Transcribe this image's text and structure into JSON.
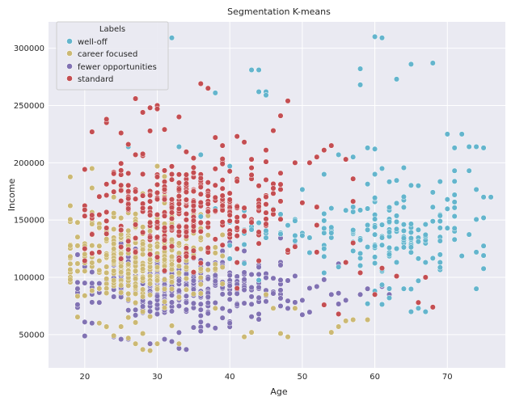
{
  "chart_data": {
    "type": "scatter",
    "title": "Segmentation K-means",
    "xlabel": "Age",
    "ylabel": "Income",
    "xlim": [
      15,
      78
    ],
    "ylim": [
      21000,
      323000
    ],
    "x_ticks": [
      20,
      30,
      40,
      50,
      60,
      70
    ],
    "y_ticks": [
      50000,
      100000,
      150000,
      200000,
      250000,
      300000
    ],
    "x_tick_labels": [
      "20",
      "30",
      "40",
      "50",
      "60",
      "70"
    ],
    "y_tick_labels": [
      "50000",
      "100000",
      "150000",
      "200000",
      "250000",
      "300000"
    ],
    "grid": true,
    "background": "#eaeaf2",
    "legend": {
      "title": "Labels",
      "placement": "top-left",
      "entries": [
        "well-off",
        "career focused",
        "fewer opportunities",
        "standard"
      ]
    },
    "series": [
      {
        "name": "well-off",
        "color": "#64b5cd",
        "clusters": [
          {
            "cx": 63,
            "cy": 140000,
            "sx": 5.5,
            "sy": 22000,
            "n": 150,
            "xmin": 53,
            "xmax": 75
          },
          {
            "cx": 47,
            "cy": 140000,
            "sx": 4,
            "sy": 15000,
            "n": 40,
            "xmin": 40,
            "xmax": 54
          }
        ],
        "points": [
          [
            32,
            309000
          ],
          [
            43,
            281000
          ],
          [
            44,
            281000
          ],
          [
            44,
            262000
          ],
          [
            45,
            262000
          ],
          [
            45,
            259000
          ],
          [
            38,
            261000
          ],
          [
            58,
            282000
          ],
          [
            58,
            268000
          ],
          [
            60,
            310000
          ],
          [
            61,
            309000
          ],
          [
            63,
            273000
          ],
          [
            65,
            286000
          ],
          [
            68,
            287000
          ],
          [
            70,
            225000
          ],
          [
            72,
            225000
          ],
          [
            71,
            213000
          ],
          [
            73,
            214000
          ],
          [
            74,
            214000
          ],
          [
            75,
            213000
          ],
          [
            73,
            193000
          ],
          [
            71,
            193000
          ],
          [
            75,
            170000
          ],
          [
            76,
            170000
          ],
          [
            70,
            168000
          ],
          [
            71,
            172000
          ],
          [
            71,
            133000
          ],
          [
            74,
            122000
          ],
          [
            74,
            90000
          ],
          [
            64,
            90000
          ],
          [
            65,
            70000
          ],
          [
            66,
            73000
          ],
          [
            67,
            70000
          ],
          [
            62,
            82000
          ],
          [
            66,
            97000
          ],
          [
            26,
            214000
          ],
          [
            33,
            214000
          ],
          [
            36,
            207000
          ],
          [
            40,
            197000
          ],
          [
            38,
            160000
          ],
          [
            39,
            160000
          ],
          [
            36,
            153000
          ],
          [
            55,
            207000
          ],
          [
            57,
            205000
          ],
          [
            59,
            213000
          ],
          [
            60,
            212000
          ],
          [
            61,
            195000
          ],
          [
            60,
            190000
          ]
        ]
      },
      {
        "name": "career focused",
        "color": "#ccb974",
        "clusters": [
          {
            "cx": 28,
            "cy": 118000,
            "sx": 5,
            "sy": 22000,
            "n": 380,
            "xmin": 18,
            "xmax": 40
          }
        ],
        "points": [
          [
            21,
            195000
          ],
          [
            21,
            178000
          ],
          [
            30,
            197000
          ],
          [
            31,
            188000
          ],
          [
            28,
            173000
          ],
          [
            24,
            170000
          ],
          [
            22,
            60000
          ],
          [
            23,
            57000
          ],
          [
            25,
            57000
          ],
          [
            26,
            47000
          ],
          [
            27,
            42000
          ],
          [
            28,
            37000
          ],
          [
            29,
            36000
          ],
          [
            30,
            42000
          ],
          [
            33,
            42000
          ],
          [
            28,
            51000
          ],
          [
            24,
            49000
          ],
          [
            42,
            48000
          ],
          [
            43,
            52000
          ],
          [
            47,
            51000
          ],
          [
            48,
            48000
          ],
          [
            46,
            73000
          ],
          [
            49,
            73000
          ],
          [
            54,
            52000
          ],
          [
            55,
            57000
          ],
          [
            56,
            62000
          ],
          [
            57,
            63000
          ],
          [
            59,
            63000
          ],
          [
            38,
            73000
          ],
          [
            45,
            85000
          ],
          [
            18,
            100000
          ],
          [
            18,
            98000
          ],
          [
            19,
            112000
          ],
          [
            34,
            190000
          ],
          [
            33,
            170000
          ]
        ]
      },
      {
        "name": "fewer opportunities",
        "color": "#8172b3",
        "clusters": [
          {
            "cx": 34,
            "cy": 92000,
            "sx": 7,
            "sy": 16000,
            "n": 380,
            "xmin": 19,
            "xmax": 55
          }
        ],
        "points": [
          [
            20,
            61000
          ],
          [
            21,
            60000
          ],
          [
            24,
            48000
          ],
          [
            25,
            46000
          ],
          [
            26,
            46000
          ],
          [
            31,
            46000
          ],
          [
            32,
            44000
          ],
          [
            33,
            38000
          ],
          [
            36,
            53000
          ],
          [
            37,
            58000
          ],
          [
            40,
            60000
          ],
          [
            44,
            68000
          ],
          [
            47,
            75000
          ],
          [
            50,
            80000
          ],
          [
            52,
            92000
          ],
          [
            53,
            98000
          ],
          [
            56,
            80000
          ],
          [
            58,
            85000
          ],
          [
            59,
            90000
          ],
          [
            60,
            88000
          ],
          [
            61,
            92000
          ],
          [
            62,
            85000
          ],
          [
            19,
            90000
          ],
          [
            20,
            95000
          ],
          [
            34,
            37000
          ],
          [
            29,
            42000
          ]
        ]
      },
      {
        "name": "standard",
        "color": "#c44e52",
        "clusters": [
          {
            "cx": 35,
            "cy": 160000,
            "sx": 7,
            "sy": 23000,
            "n": 330,
            "xmin": 20,
            "xmax": 57
          }
        ],
        "points": [
          [
            21,
            227000
          ],
          [
            23,
            235000
          ],
          [
            23,
            238000
          ],
          [
            25,
            226000
          ],
          [
            26,
            216000
          ],
          [
            27,
            256000
          ],
          [
            28,
            244000
          ],
          [
            29,
            248000
          ],
          [
            30,
            250000
          ],
          [
            30,
            247000
          ],
          [
            33,
            240000
          ],
          [
            36,
            269000
          ],
          [
            37,
            265000
          ],
          [
            38,
            222000
          ],
          [
            39,
            215000
          ],
          [
            35,
            204000
          ],
          [
            41,
            223000
          ],
          [
            42,
            218000
          ],
          [
            43,
            203000
          ],
          [
            45,
            211000
          ],
          [
            46,
            228000
          ],
          [
            47,
            241000
          ],
          [
            48,
            254000
          ],
          [
            49,
            200000
          ],
          [
            51,
            200000
          ],
          [
            52,
            205000
          ],
          [
            53,
            211000
          ],
          [
            54,
            215000
          ],
          [
            56,
            203000
          ],
          [
            57,
            186000
          ],
          [
            31,
            229000
          ],
          [
            32,
            190000
          ],
          [
            21,
            121000
          ],
          [
            22,
            122000
          ],
          [
            20,
            125000
          ],
          [
            29,
            120000
          ],
          [
            53,
            76000
          ],
          [
            61,
            108000
          ],
          [
            67,
            100000
          ],
          [
            58,
            104000
          ],
          [
            63,
            101000
          ],
          [
            66,
            78000
          ],
          [
            68,
            74000
          ],
          [
            55,
            68000
          ],
          [
            56,
            113000
          ],
          [
            52,
            122000
          ],
          [
            57,
            130000
          ],
          [
            60,
            85000
          ]
        ]
      }
    ]
  }
}
